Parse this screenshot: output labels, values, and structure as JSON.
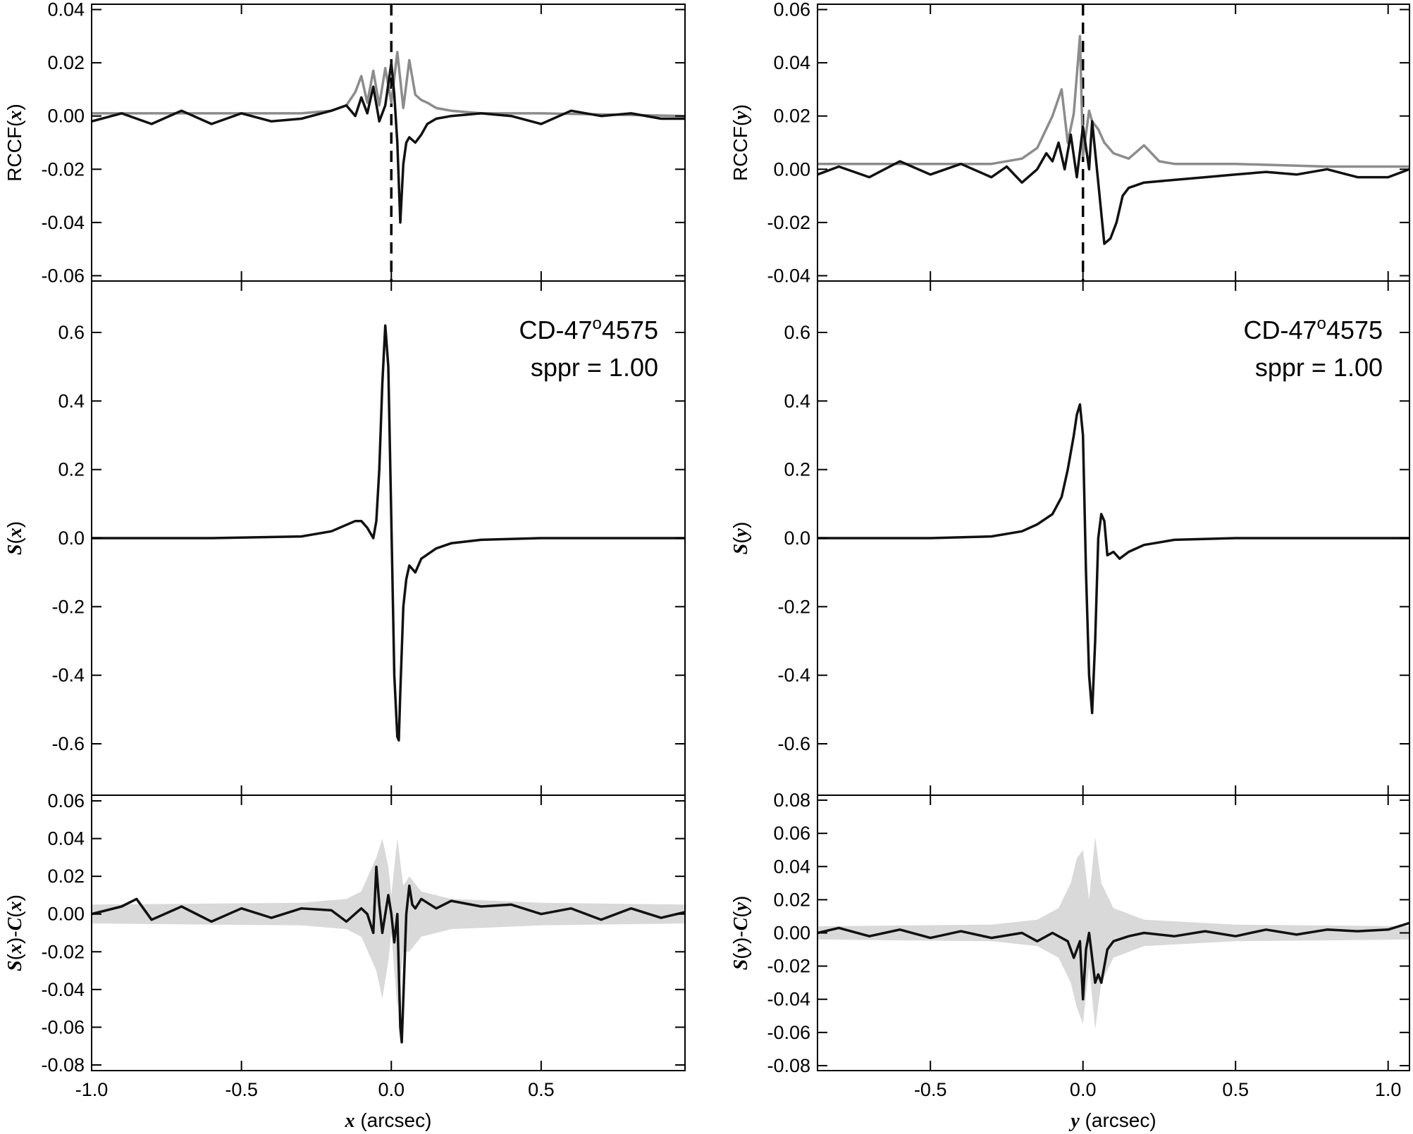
{
  "chart_data": [
    {
      "type": "line",
      "panel": "left-top",
      "ylabel_prefix": "RCCF(",
      "ylabel_var": "x",
      "ylabel_suffix": ")",
      "xlim": [
        -1.0,
        0.98
      ],
      "ylim": [
        -0.062,
        0.042
      ],
      "yticks": [
        "0.04",
        "0.02",
        "0.00",
        "-0.02",
        "-0.04",
        "-0.06"
      ],
      "yticks_values": [
        0.04,
        0.02,
        0.0,
        -0.02,
        -0.04,
        -0.06
      ],
      "vline_x": 0.0,
      "series": [
        {
          "color": "#8c8c8c",
          "x": [
            -1.0,
            -0.5,
            -0.3,
            -0.2,
            -0.15,
            -0.12,
            -0.1,
            -0.08,
            -0.06,
            -0.04,
            -0.02,
            0.0,
            0.02,
            0.04,
            0.06,
            0.08,
            0.1,
            0.12,
            0.15,
            0.2,
            0.3,
            0.5,
            0.98
          ],
          "y": [
            0.001,
            0.001,
            0.001,
            0.002,
            0.004,
            0.009,
            0.015,
            0.005,
            0.017,
            0.004,
            0.018,
            0.005,
            0.024,
            0.003,
            0.021,
            0.008,
            0.006,
            0.005,
            0.003,
            0.002,
            0.001,
            0.001,
            0.0
          ]
        },
        {
          "color": "#111111",
          "x": [
            -1.0,
            -0.9,
            -0.8,
            -0.7,
            -0.6,
            -0.5,
            -0.4,
            -0.3,
            -0.2,
            -0.15,
            -0.12,
            -0.1,
            -0.08,
            -0.06,
            -0.04,
            -0.02,
            0.0,
            0.01,
            0.02,
            0.03,
            0.04,
            0.05,
            0.06,
            0.08,
            0.1,
            0.12,
            0.15,
            0.2,
            0.3,
            0.4,
            0.5,
            0.6,
            0.7,
            0.8,
            0.9,
            0.98
          ],
          "y": [
            -0.002,
            0.001,
            -0.003,
            0.002,
            -0.003,
            0.001,
            -0.002,
            -0.001,
            0.002,
            0.004,
            0.0,
            0.007,
            0.001,
            0.011,
            -0.002,
            0.004,
            0.02,
            0.008,
            -0.01,
            -0.04,
            -0.018,
            -0.01,
            -0.008,
            -0.01,
            -0.007,
            -0.003,
            -0.001,
            0.0,
            0.001,
            0.0,
            -0.003,
            0.002,
            0.0,
            0.001,
            -0.001,
            -0.001
          ]
        }
      ]
    },
    {
      "type": "line",
      "panel": "right-top",
      "ylabel_prefix": "RCCF(",
      "ylabel_var": "y",
      "ylabel_suffix": ")",
      "xlim": [
        -0.87,
        1.07
      ],
      "ylim": [
        -0.042,
        0.062
      ],
      "yticks": [
        "0.06",
        "0.04",
        "0.02",
        "0.00",
        "-0.02",
        "-0.04"
      ],
      "yticks_values": [
        0.06,
        0.04,
        0.02,
        0.0,
        -0.02,
        -0.04
      ],
      "vline_x": 0.0,
      "series": [
        {
          "color": "#8c8c8c",
          "x": [
            -0.87,
            -0.5,
            -0.3,
            -0.2,
            -0.15,
            -0.1,
            -0.07,
            -0.05,
            -0.03,
            -0.01,
            0.0,
            0.02,
            0.03,
            0.05,
            0.07,
            0.1,
            0.15,
            0.2,
            0.25,
            0.3,
            0.5,
            0.8,
            1.07
          ],
          "y": [
            0.002,
            0.002,
            0.002,
            0.004,
            0.008,
            0.02,
            0.03,
            0.01,
            0.021,
            0.05,
            0.005,
            0.022,
            0.018,
            0.015,
            0.01,
            0.006,
            0.004,
            0.009,
            0.003,
            0.002,
            0.002,
            0.001,
            0.001
          ]
        },
        {
          "color": "#111111",
          "x": [
            -0.87,
            -0.8,
            -0.7,
            -0.6,
            -0.5,
            -0.4,
            -0.3,
            -0.25,
            -0.2,
            -0.15,
            -0.12,
            -0.1,
            -0.08,
            -0.06,
            -0.04,
            -0.02,
            0.0,
            0.02,
            0.03,
            0.05,
            0.07,
            0.09,
            0.11,
            0.13,
            0.15,
            0.2,
            0.3,
            0.4,
            0.5,
            0.6,
            0.7,
            0.8,
            0.9,
            1.0,
            1.07
          ],
          "y": [
            -0.002,
            0.001,
            -0.003,
            0.003,
            -0.002,
            0.002,
            -0.003,
            0.001,
            -0.005,
            0.0,
            0.006,
            0.003,
            0.01,
            0.0,
            0.013,
            -0.003,
            0.016,
            0.0,
            0.018,
            -0.005,
            -0.028,
            -0.026,
            -0.02,
            -0.01,
            -0.007,
            -0.005,
            -0.004,
            -0.003,
            -0.002,
            -0.001,
            -0.002,
            0.0,
            -0.003,
            -0.003,
            0.0
          ]
        }
      ]
    },
    {
      "type": "line",
      "panel": "left-middle",
      "ylabel_var": "S",
      "ylabel_arg": "x",
      "xlim": [
        -1.0,
        0.98
      ],
      "ylim": [
        -0.75,
        0.75
      ],
      "yticks": [
        "0.6",
        "0.4",
        "0.2",
        "0.0",
        "-0.2",
        "-0.4",
        "-0.6"
      ],
      "yticks_values": [
        0.6,
        0.4,
        0.2,
        0.0,
        -0.2,
        -0.4,
        -0.6
      ],
      "annotation_name_prefix": "CD-47",
      "annotation_name_sup": "o",
      "annotation_name_suffix": "4575",
      "annotation_param": "sppr = 1.00",
      "series": [
        {
          "color": "#111111",
          "x": [
            -1.0,
            -0.6,
            -0.3,
            -0.2,
            -0.12,
            -0.1,
            -0.08,
            -0.06,
            -0.05,
            -0.04,
            -0.03,
            -0.02,
            -0.01,
            0.0,
            0.01,
            0.02,
            0.025,
            0.03,
            0.04,
            0.05,
            0.06,
            0.08,
            0.1,
            0.15,
            0.2,
            0.3,
            0.5,
            0.98
          ],
          "y": [
            0.0,
            0.0,
            0.005,
            0.02,
            0.05,
            0.05,
            0.03,
            0.0,
            0.05,
            0.2,
            0.45,
            0.62,
            0.5,
            0.05,
            -0.4,
            -0.58,
            -0.59,
            -0.45,
            -0.2,
            -0.12,
            -0.08,
            -0.1,
            -0.06,
            -0.03,
            -0.015,
            -0.005,
            0.0,
            0.0
          ]
        }
      ]
    },
    {
      "type": "line",
      "panel": "right-middle",
      "ylabel_var": "S",
      "ylabel_arg": "y",
      "xlim": [
        -0.87,
        1.07
      ],
      "ylim": [
        -0.75,
        0.75
      ],
      "yticks": [
        "0.6",
        "0.4",
        "0.2",
        "0.0",
        "-0.2",
        "-0.4",
        "-0.6"
      ],
      "yticks_values": [
        0.6,
        0.4,
        0.2,
        0.0,
        -0.2,
        -0.4,
        -0.6
      ],
      "annotation_name_prefix": "CD-47",
      "annotation_name_sup": "o",
      "annotation_name_suffix": "4575",
      "annotation_param": "sppr = 1.00",
      "series": [
        {
          "color": "#111111",
          "x": [
            -0.87,
            -0.5,
            -0.3,
            -0.2,
            -0.15,
            -0.1,
            -0.07,
            -0.05,
            -0.03,
            -0.02,
            -0.01,
            0.0,
            0.01,
            0.02,
            0.03,
            0.04,
            0.05,
            0.06,
            0.07,
            0.08,
            0.1,
            0.12,
            0.15,
            0.2,
            0.3,
            0.5,
            1.07
          ],
          "y": [
            0.0,
            0.0,
            0.005,
            0.02,
            0.04,
            0.07,
            0.12,
            0.2,
            0.3,
            0.36,
            0.39,
            0.3,
            -0.1,
            -0.4,
            -0.51,
            -0.3,
            0.0,
            0.07,
            0.05,
            -0.05,
            -0.04,
            -0.06,
            -0.04,
            -0.02,
            -0.005,
            0.0,
            0.0
          ]
        }
      ]
    },
    {
      "type": "line",
      "panel": "left-bottom",
      "ylabel_s": "S",
      "ylabel_c": "C",
      "ylabel_arg": "x",
      "xlim": [
        -1.0,
        0.98
      ],
      "ylim": [
        -0.083,
        0.063
      ],
      "yticks": [
        "0.06",
        "0.04",
        "0.02",
        "0.00",
        "-0.02",
        "-0.04",
        "-0.06",
        "-0.08"
      ],
      "yticks_values": [
        0.06,
        0.04,
        0.02,
        0.0,
        -0.02,
        -0.04,
        -0.06,
        -0.08
      ],
      "xticks": [
        "-1.0",
        "-0.5",
        "0.0",
        "0.5"
      ],
      "xticks_values": [
        -1.0,
        -0.5,
        0.0,
        0.5
      ],
      "xlabel_var": "x",
      "xlabel_unit": "(arcsec)",
      "band": {
        "color": "#d9d9d9",
        "x": [
          -1.0,
          -0.3,
          -0.15,
          -0.1,
          -0.05,
          -0.03,
          -0.01,
          0.0,
          0.02,
          0.04,
          0.06,
          0.1,
          0.2,
          0.5,
          0.98
        ],
        "upper": [
          0.005,
          0.006,
          0.008,
          0.012,
          0.03,
          0.04,
          0.025,
          0.01,
          0.04,
          0.015,
          0.02,
          0.012,
          0.008,
          0.006,
          0.005
        ],
        "lower": [
          -0.005,
          -0.006,
          -0.008,
          -0.012,
          -0.03,
          -0.045,
          -0.025,
          -0.01,
          -0.05,
          -0.02,
          -0.02,
          -0.012,
          -0.008,
          -0.006,
          -0.005
        ]
      },
      "series": [
        {
          "color": "#111111",
          "x": [
            -1.0,
            -0.9,
            -0.85,
            -0.8,
            -0.7,
            -0.6,
            -0.5,
            -0.4,
            -0.3,
            -0.2,
            -0.15,
            -0.1,
            -0.08,
            -0.06,
            -0.05,
            -0.04,
            -0.03,
            -0.02,
            -0.01,
            0.0,
            0.01,
            0.02,
            0.03,
            0.035,
            0.04,
            0.05,
            0.06,
            0.07,
            0.08,
            0.1,
            0.15,
            0.2,
            0.3,
            0.4,
            0.5,
            0.6,
            0.7,
            0.8,
            0.9,
            0.98
          ],
          "y": [
            0.0,
            0.004,
            0.008,
            -0.003,
            0.004,
            -0.004,
            0.003,
            -0.002,
            0.003,
            0.002,
            -0.004,
            0.003,
            0.0,
            -0.01,
            0.025,
            0.005,
            -0.01,
            0.0,
            0.01,
            0.0,
            -0.015,
            0.0,
            -0.06,
            -0.068,
            -0.045,
            0.0,
            0.015,
            0.005,
            0.003,
            0.008,
            0.003,
            0.007,
            0.004,
            0.005,
            0.0,
            0.003,
            -0.003,
            0.003,
            -0.002,
            0.001
          ]
        }
      ]
    },
    {
      "type": "line",
      "panel": "right-bottom",
      "ylabel_s": "S",
      "ylabel_c": "C",
      "ylabel_arg": "y",
      "xlim": [
        -0.87,
        1.07
      ],
      "ylim": [
        -0.083,
        0.083
      ],
      "yticks": [
        "0.08",
        "0.06",
        "0.04",
        "0.02",
        "0.00",
        "-0.02",
        "-0.04",
        "-0.06",
        "-0.08"
      ],
      "yticks_values": [
        0.08,
        0.06,
        0.04,
        0.02,
        0.0,
        -0.02,
        -0.04,
        -0.06,
        -0.08
      ],
      "xticks": [
        "-0.5",
        "0.0",
        "0.5",
        "1.0"
      ],
      "xticks_values": [
        -0.5,
        0.0,
        0.5,
        1.0
      ],
      "xlabel_var": "y",
      "xlabel_unit": "(arcsec)",
      "band": {
        "color": "#d9d9d9",
        "x": [
          -0.87,
          -0.3,
          -0.15,
          -0.08,
          -0.04,
          -0.02,
          0.0,
          0.02,
          0.04,
          0.06,
          0.1,
          0.2,
          0.5,
          1.07
        ],
        "upper": [
          0.004,
          0.005,
          0.008,
          0.015,
          0.03,
          0.045,
          0.05,
          0.02,
          0.058,
          0.03,
          0.015,
          0.008,
          0.005,
          0.004
        ],
        "lower": [
          -0.004,
          -0.005,
          -0.008,
          -0.015,
          -0.03,
          -0.045,
          -0.055,
          -0.02,
          -0.058,
          -0.03,
          -0.015,
          -0.008,
          -0.005,
          -0.004
        ]
      },
      "series": [
        {
          "color": "#111111",
          "x": [
            -0.87,
            -0.8,
            -0.7,
            -0.6,
            -0.5,
            -0.4,
            -0.3,
            -0.2,
            -0.15,
            -0.1,
            -0.05,
            -0.03,
            -0.01,
            0.0,
            0.01,
            0.02,
            0.03,
            0.04,
            0.05,
            0.06,
            0.08,
            0.1,
            0.15,
            0.2,
            0.3,
            0.4,
            0.5,
            0.6,
            0.7,
            0.8,
            0.9,
            1.0,
            1.07
          ],
          "y": [
            0.0,
            0.003,
            -0.002,
            0.002,
            -0.003,
            0.001,
            -0.003,
            0.0,
            -0.005,
            0.0,
            -0.005,
            -0.015,
            -0.005,
            -0.04,
            -0.01,
            0.0,
            -0.015,
            -0.03,
            -0.025,
            -0.03,
            -0.01,
            -0.005,
            -0.002,
            0.0,
            -0.002,
            0.001,
            -0.002,
            0.002,
            -0.001,
            0.002,
            0.001,
            0.002,
            0.006
          ]
        }
      ]
    }
  ]
}
